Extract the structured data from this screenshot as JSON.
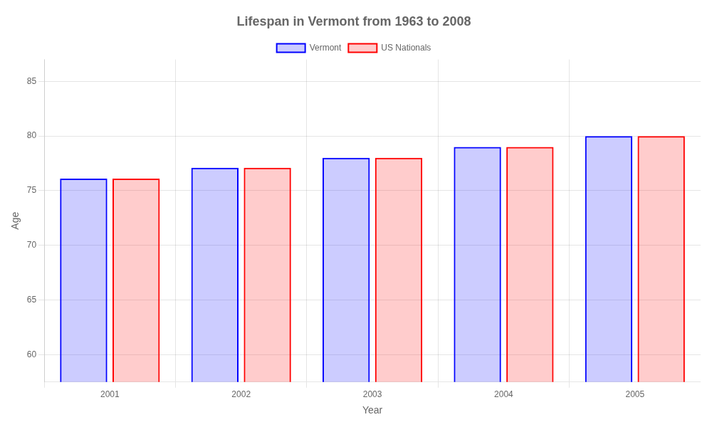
{
  "chart_data": {
    "type": "bar",
    "title": "Lifespan in Vermont from 1963 to 2008",
    "x_label": "Year",
    "y_label": "Age",
    "categories": [
      "2001",
      "2002",
      "2003",
      "2004",
      "2005"
    ],
    "series": [
      {
        "name": "Vermont",
        "color": "#0000ff",
        "values": [
          76.1,
          77.1,
          78.0,
          79.0,
          80.0
        ]
      },
      {
        "name": "US Nationals",
        "color": "#ff0000",
        "values": [
          76.1,
          77.1,
          78.0,
          79.0,
          80.0
        ]
      }
    ],
    "ylim": [
      57.5,
      87
    ],
    "yticks": [
      60,
      65,
      70,
      75,
      80,
      85
    ],
    "grid": true,
    "legend": "top"
  }
}
